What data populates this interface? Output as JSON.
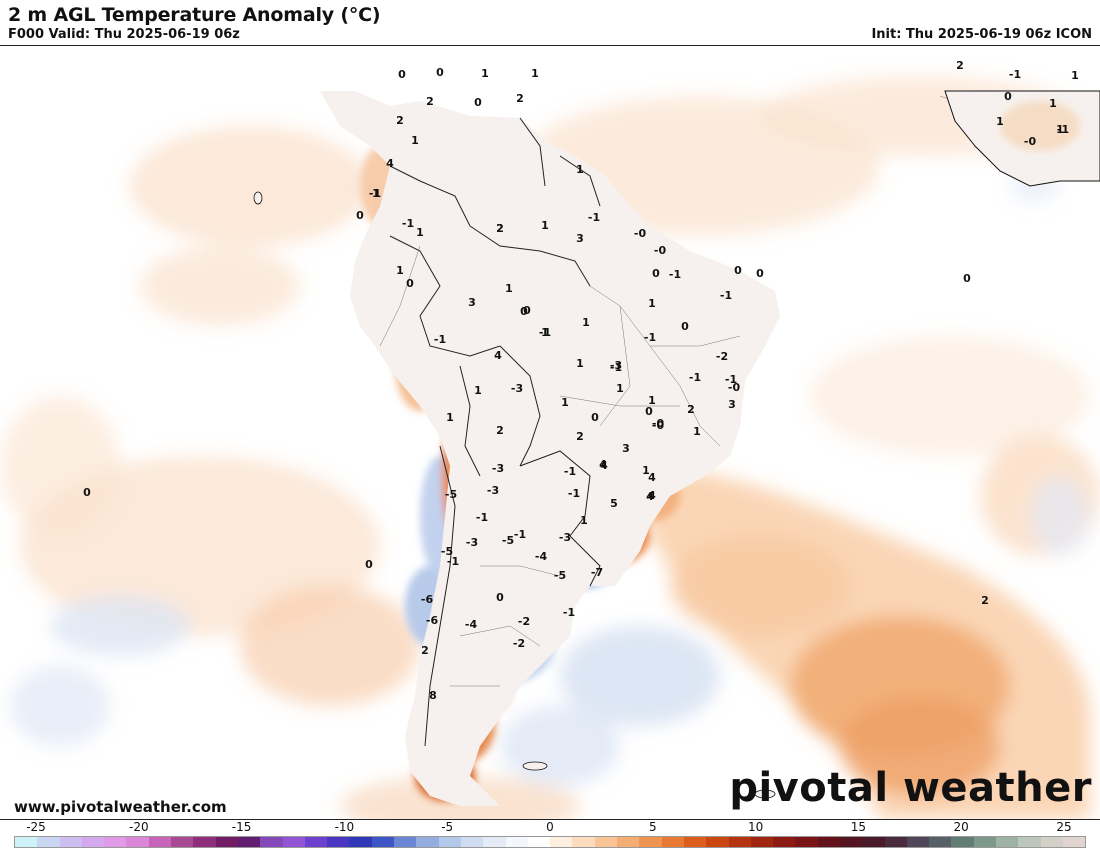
{
  "header": {
    "title": "2 m AGL Temperature Anomaly (°C)",
    "valid": "F000 Valid: Thu 2025-06-19 06z",
    "init": "Init: Thu 2025-06-19 06z ICON"
  },
  "footer": {
    "website": "www.pivotalweather.com",
    "brand": "pivotal weather"
  },
  "map": {
    "region": "South America",
    "labels": [
      {
        "text": "0"
      },
      {
        "text": "0"
      },
      {
        "text": "1"
      },
      {
        "text": "1"
      },
      {
        "text": "2"
      },
      {
        "text": "0"
      },
      {
        "text": "2"
      },
      {
        "text": "2"
      },
      {
        "text": "1"
      },
      {
        "text": "4"
      },
      {
        "text": "1"
      },
      {
        "text": "-1"
      },
      {
        "text": "2"
      },
      {
        "text": "0"
      },
      {
        "text": "1"
      },
      {
        "text": "2"
      },
      {
        "text": "1"
      },
      {
        "text": "1"
      },
      {
        "text": "-1"
      },
      {
        "text": "0"
      },
      {
        "text": "1"
      },
      {
        "text": "3"
      },
      {
        "text": "0"
      },
      {
        "text": "-0"
      },
      {
        "text": "-0"
      },
      {
        "text": "0"
      },
      {
        "text": "0"
      },
      {
        "text": "1"
      },
      {
        "text": "0"
      },
      {
        "text": "-1"
      },
      {
        "text": "0"
      },
      {
        "text": "-1"
      },
      {
        "text": "1"
      },
      {
        "text": "3"
      },
      {
        "text": "1"
      },
      {
        "text": "0"
      },
      {
        "text": "-1"
      },
      {
        "text": "1"
      },
      {
        "text": "-0"
      },
      {
        "text": "-1"
      },
      {
        "text": "-2"
      },
      {
        "text": "4"
      },
      {
        "text": "1"
      },
      {
        "text": "-3"
      },
      {
        "text": "1"
      },
      {
        "text": "-1"
      },
      {
        "text": "-3"
      },
      {
        "text": "1"
      },
      {
        "text": "4"
      },
      {
        "text": "3"
      },
      {
        "text": "1"
      },
      {
        "text": "2"
      },
      {
        "text": "1"
      },
      {
        "text": "2"
      },
      {
        "text": "0"
      },
      {
        "text": "-0"
      },
      {
        "text": "1"
      },
      {
        "text": "0"
      },
      {
        "text": "2"
      },
      {
        "text": "3"
      },
      {
        "text": "-1"
      },
      {
        "text": "-1"
      },
      {
        "text": "-3"
      },
      {
        "text": "-0"
      },
      {
        "text": "4"
      },
      {
        "text": "1"
      },
      {
        "text": "-3"
      },
      {
        "text": "-1"
      },
      {
        "text": "5"
      },
      {
        "text": "4"
      },
      {
        "text": "-5"
      },
      {
        "text": "-1"
      },
      {
        "text": "1"
      },
      {
        "text": "-5"
      },
      {
        "text": "-1"
      },
      {
        "text": "4"
      },
      {
        "text": "-3"
      },
      {
        "text": "-4"
      },
      {
        "text": "-5"
      },
      {
        "text": "-1"
      },
      {
        "text": "-3"
      },
      {
        "text": "-1"
      },
      {
        "text": "-6"
      },
      {
        "text": "0"
      },
      {
        "text": "-6"
      },
      {
        "text": "-4"
      },
      {
        "text": "-2"
      },
      {
        "text": "-1"
      },
      {
        "text": "-2"
      },
      {
        "text": "2"
      },
      {
        "text": "8"
      },
      {
        "text": "0"
      },
      {
        "text": "0"
      },
      {
        "text": "0"
      },
      {
        "text": "2"
      },
      {
        "text": "-1"
      },
      {
        "text": "0"
      },
      {
        "text": "1"
      },
      {
        "text": "1"
      },
      {
        "text": "-0"
      },
      {
        "text": "2"
      },
      {
        "text": "1"
      },
      {
        "text": "1"
      },
      {
        "text": "-1"
      },
      {
        "text": "-1"
      },
      {
        "text": "-5"
      },
      {
        "text": "4"
      },
      {
        "text": "-1"
      },
      {
        "text": "1"
      },
      {
        "text": "-7"
      }
    ]
  },
  "colorbar": {
    "ticks": [
      "-25",
      "-20",
      "-15",
      "-10",
      "-5",
      "0",
      "5",
      "10",
      "15",
      "20",
      "25"
    ],
    "colors": [
      "#cdf2f7",
      "#c9d6f2",
      "#cdbdf0",
      "#d4a8ee",
      "#e19ae6",
      "#dc86d8",
      "#c864b8",
      "#a84993",
      "#8e2d79",
      "#721c63",
      "#621c70",
      "#8448b8",
      "#9254d2",
      "#6e40ce",
      "#4b36c4",
      "#3038b8",
      "#3d56c6",
      "#6a86d4",
      "#94acde",
      "#b4c8ea",
      "#cfdcf2",
      "#e4ebf7",
      "#f4f7fc",
      "#ffffff",
      "#fdeede",
      "#fcdcbd",
      "#f9c597",
      "#f4ad72",
      "#ef9450",
      "#e97a35",
      "#dc5e1c",
      "#cc4612",
      "#b5330f",
      "#a12510",
      "#8e1a14",
      "#7a1417",
      "#64121c",
      "#541421",
      "#4a1a2a",
      "#4a2b3e",
      "#4f4657",
      "#566067",
      "#627d74",
      "#7d998b",
      "#9eb2a4",
      "#bcc6ba",
      "#d3d0c8",
      "#e2d4d0"
    ]
  }
}
